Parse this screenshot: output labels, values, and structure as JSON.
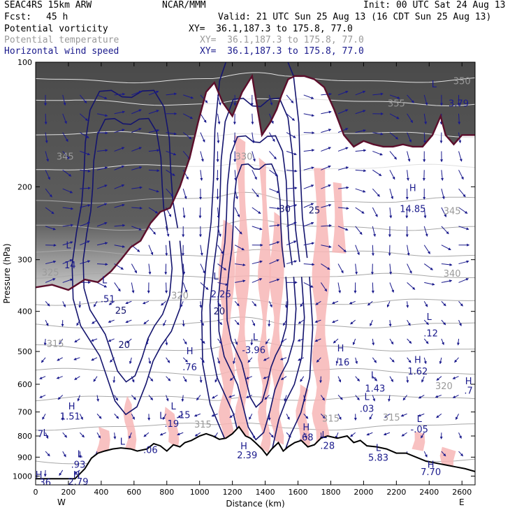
{
  "header": {
    "model": "SEAC4RS 15km ARW",
    "center": "NCAR/MMM",
    "init": "Init: 00 UTC Sat 24 Aug 13",
    "fcst_label": "Fcst:",
    "fcst_value": "45 h",
    "valid": "Valid: 21 UTC Sun 25 Aug 13 (16 CDT Sun 25 Aug 13)"
  },
  "fields": [
    {
      "name": "Potential vorticity",
      "xy": "XY=  36.1,187.3 to 175.8, 77.0",
      "color": "#000000"
    },
    {
      "name": "Potential temperature",
      "xy": "XY=  36.1,187.3 to 175.8, 77.0",
      "color": "#9a9a9a"
    },
    {
      "name": "Horizontal wind speed",
      "xy": "XY=  36.1,187.3 to 175.8, 77.0",
      "color": "#1a1a8c"
    }
  ],
  "chart_data": {
    "type": "cross-section",
    "xlabel": "Distance (km)",
    "ylabel": "Pressure (hPa)",
    "xlim": [
      0,
      2680
    ],
    "ylim": [
      1050,
      100
    ],
    "y_scale": "log",
    "x_ticks": [
      "0",
      "200",
      "400",
      "600",
      "800",
      "1000",
      "1200",
      "1400",
      "1600",
      "1800",
      "2000",
      "2200",
      "2400",
      "2600"
    ],
    "y_ticks": [
      "100",
      "200",
      "300",
      "400",
      "500",
      "600",
      "700",
      "800",
      "900",
      "1000"
    ],
    "x_end_labels": {
      "left": "W",
      "right": "E"
    },
    "theta_labels": [
      {
        "text": "345",
        "x": 180,
        "p": 172
      },
      {
        "text": "330",
        "x": 1270,
        "p": 172
      },
      {
        "text": "355",
        "x": 2200,
        "p": 128
      },
      {
        "text": "350",
        "x": 2600,
        "p": 113
      },
      {
        "text": "345",
        "x": 2540,
        "p": 233
      },
      {
        "text": "340",
        "x": 2540,
        "p": 330
      },
      {
        "text": "325",
        "x": 90,
        "p": 328
      },
      {
        "text": "320",
        "x": 880,
        "p": 373
      },
      {
        "text": "315",
        "x": 120,
        "p": 487
      },
      {
        "text": "320",
        "x": 2490,
        "p": 617
      },
      {
        "text": "315",
        "x": 2170,
        "p": 735
      },
      {
        "text": "315",
        "x": 1020,
        "p": 763
      },
      {
        "text": "315",
        "x": 1800,
        "p": 738
      }
    ],
    "wind_speed_labels": [
      {
        "text": "25",
        "x": 520,
        "p": 405
      },
      {
        "text": "20",
        "x": 540,
        "p": 490
      },
      {
        "text": "20",
        "x": 1120,
        "p": 407
      },
      {
        "text": "30",
        "x": 1520,
        "p": 230
      },
      {
        "text": "25",
        "x": 1700,
        "p": 232
      }
    ],
    "high_low_markers": [
      {
        "kind": "L",
        "x": 2430,
        "p": 115
      },
      {
        "value": "3.79",
        "x": 2580,
        "p": 128
      },
      {
        "kind": "H",
        "x": 2300,
        "p": 205
      },
      {
        "value": "14.85",
        "x": 2300,
        "p": 230
      },
      {
        "kind": "L",
        "x": 200,
        "p": 282
      },
      {
        "value": "14",
        "x": 210,
        "p": 315
      },
      {
        "kind": "L",
        "x": 420,
        "p": 342
      },
      {
        "value": ".51",
        "x": 440,
        "p": 380
      },
      {
        "kind": "L",
        "x": 2400,
        "p": 420
      },
      {
        "value": ".12",
        "x": 2410,
        "p": 460
      },
      {
        "kind": "H",
        "x": 940,
        "p": 508
      },
      {
        "value": ".76",
        "x": 940,
        "p": 555
      },
      {
        "kind": "H",
        "x": 1860,
        "p": 500
      },
      {
        "value": ".16",
        "x": 1870,
        "p": 540
      },
      {
        "kind": "H",
        "x": 2330,
        "p": 533
      },
      {
        "value": "1.62",
        "x": 2330,
        "p": 568
      },
      {
        "kind": "L",
        "x": 2060,
        "p": 580
      },
      {
        "value": "1.43",
        "x": 2070,
        "p": 625
      },
      {
        "kind": "H",
        "x": 2640,
        "p": 600
      },
      {
        "value": ".7",
        "x": 2640,
        "p": 632
      },
      {
        "kind": "L",
        "x": 2020,
        "p": 655
      },
      {
        "value": ".03",
        "x": 2020,
        "p": 700
      },
      {
        "kind": "H",
        "x": 220,
        "p": 690
      },
      {
        "value": "1.51",
        "x": 210,
        "p": 730
      },
      {
        "kind": "L",
        "x": 2340,
        "p": 740
      },
      {
        "value": "-.05",
        "x": 2340,
        "p": 785
      },
      {
        "kind": "H",
        "x": 1650,
        "p": 775
      },
      {
        "value": ".68",
        "x": 1650,
        "p": 820
      },
      {
        "kind": "L",
        "x": 1760,
        "p": 810
      },
      {
        "value": ".28",
        "x": 1780,
        "p": 860
      },
      {
        "kind": "H",
        "x": 1270,
        "p": 862
      },
      {
        "value": "2.39",
        "x": 1290,
        "p": 905
      },
      {
        "kind": "L",
        "x": 2090,
        "p": 870
      },
      {
        "value": "5.83",
        "x": 2090,
        "p": 918
      },
      {
        "kind": "H",
        "x": 2410,
        "p": 955
      },
      {
        "value": "7.70",
        "x": 2410,
        "p": 995
      },
      {
        "kind": "L",
        "x": 270,
        "p": 900
      },
      {
        "value": ".93",
        "x": 260,
        "p": 955
      },
      {
        "kind": "H",
        "x": 20,
        "p": 1010
      },
      {
        "value": ".36",
        "x": 50,
        "p": 1055
      },
      {
        "kind": "H",
        "x": 250,
        "p": 1010
      },
      {
        "value": "2.79",
        "x": 260,
        "p": 1050
      },
      {
        "kind": "L",
        "x": 530,
        "p": 840
      },
      {
        "value": ".06",
        "x": 700,
        "p": 880
      },
      {
        "kind": "L",
        "x": 840,
        "p": 690
      },
      {
        "value": ".15",
        "x": 900,
        "p": 725
      },
      {
        "kind": "L",
        "x": 770,
        "p": 727
      },
      {
        "value": ".19",
        "x": 830,
        "p": 760
      },
      {
        "kind": "L",
        "x": 1340,
        "p": 470
      },
      {
        "value": "-3.96",
        "x": 1330,
        "p": 505
      },
      {
        "kind": "L",
        "x": 1100,
        "p": 335
      },
      {
        "value": "2.26",
        "x": 1130,
        "p": 370
      },
      {
        "kind": "L",
        "x": 60,
        "p": 800
      },
      {
        "value": "7",
        "x": 30,
        "p": 805
      }
    ],
    "terrain_hpa": [
      [
        0,
        1015
      ],
      [
        240,
        1015
      ],
      [
        300,
        960
      ],
      [
        340,
        905
      ],
      [
        380,
        880
      ],
      [
        420,
        870
      ],
      [
        470,
        860
      ],
      [
        520,
        855
      ],
      [
        580,
        860
      ],
      [
        620,
        870
      ],
      [
        680,
        860
      ],
      [
        720,
        835
      ],
      [
        760,
        845
      ],
      [
        800,
        870
      ],
      [
        840,
        840
      ],
      [
        880,
        850
      ],
      [
        910,
        830
      ],
      [
        950,
        820
      ],
      [
        1000,
        800
      ],
      [
        1040,
        790
      ],
      [
        1080,
        800
      ],
      [
        1120,
        815
      ],
      [
        1160,
        810
      ],
      [
        1200,
        790
      ],
      [
        1240,
        760
      ],
      [
        1280,
        800
      ],
      [
        1310,
        810
      ],
      [
        1340,
        830
      ],
      [
        1380,
        860
      ],
      [
        1410,
        890
      ],
      [
        1440,
        860
      ],
      [
        1480,
        830
      ],
      [
        1510,
        870
      ],
      [
        1540,
        850
      ],
      [
        1580,
        830
      ],
      [
        1620,
        820
      ],
      [
        1660,
        850
      ],
      [
        1700,
        840
      ],
      [
        1740,
        810
      ],
      [
        1780,
        800
      ],
      [
        1840,
        810
      ],
      [
        1900,
        800
      ],
      [
        1940,
        830
      ],
      [
        1980,
        820
      ],
      [
        2020,
        845
      ],
      [
        2080,
        850
      ],
      [
        2140,
        860
      ],
      [
        2200,
        880
      ],
      [
        2260,
        880
      ],
      [
        2320,
        900
      ],
      [
        2380,
        920
      ],
      [
        2440,
        930
      ],
      [
        2500,
        940
      ],
      [
        2560,
        950
      ],
      [
        2620,
        960
      ],
      [
        2680,
        975
      ]
    ],
    "tropopause_hpa": [
      [
        0,
        350
      ],
      [
        100,
        345
      ],
      [
        200,
        355
      ],
      [
        300,
        335
      ],
      [
        380,
        340
      ],
      [
        460,
        320
      ],
      [
        520,
        300
      ],
      [
        580,
        280
      ],
      [
        640,
        270
      ],
      [
        700,
        245
      ],
      [
        760,
        230
      ],
      [
        820,
        225
      ],
      [
        880,
        200
      ],
      [
        940,
        170
      ],
      [
        990,
        140
      ],
      [
        1040,
        118
      ],
      [
        1090,
        112
      ],
      [
        1140,
        125
      ],
      [
        1200,
        135
      ],
      [
        1260,
        118
      ],
      [
        1320,
        108
      ],
      [
        1380,
        150
      ],
      [
        1430,
        140
      ],
      [
        1470,
        130
      ],
      [
        1500,
        120
      ],
      [
        1540,
        110
      ],
      [
        1580,
        108
      ],
      [
        1640,
        108
      ],
      [
        1700,
        110
      ],
      [
        1760,
        115
      ],
      [
        1820,
        130
      ],
      [
        1880,
        150
      ],
      [
        1940,
        160
      ],
      [
        2000,
        155
      ],
      [
        2060,
        158
      ],
      [
        2120,
        160
      ],
      [
        2180,
        160
      ],
      [
        2240,
        158
      ],
      [
        2300,
        160
      ],
      [
        2360,
        160
      ],
      [
        2420,
        150
      ],
      [
        2470,
        135
      ],
      [
        2500,
        150
      ],
      [
        2550,
        158
      ],
      [
        2600,
        150
      ],
      [
        2680,
        150
      ]
    ]
  }
}
